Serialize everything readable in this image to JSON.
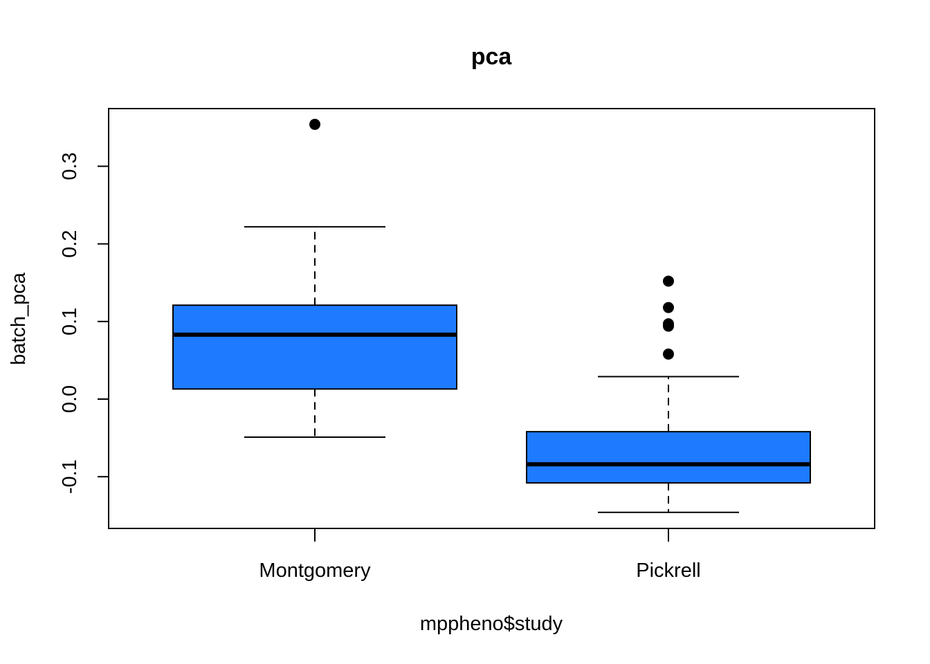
{
  "chart_data": {
    "type": "boxplot",
    "title": "pca",
    "xlabel": "mppheno$study",
    "ylabel": "batch_pca",
    "ylim": [
      -0.165,
      0.375
    ],
    "yticks": [
      -0.1,
      0.0,
      0.1,
      0.2,
      0.3
    ],
    "ytick_labels": [
      "-0.1",
      "0.0",
      "0.1",
      "0.2",
      "0.3"
    ],
    "categories": [
      "Montgomery",
      "Pickrell"
    ],
    "box_color": "#1E7BFF",
    "line_color": "#000000",
    "grid": false,
    "boxes": [
      {
        "name": "Montgomery",
        "whisker_low": -0.049,
        "q1": 0.013,
        "median": 0.083,
        "q3": 0.121,
        "whisker_high": 0.222,
        "outliers": [
          0.354
        ]
      },
      {
        "name": "Pickrell",
        "whisker_low": -0.146,
        "q1": -0.108,
        "median": -0.084,
        "q3": -0.042,
        "whisker_high": 0.029,
        "outliers": [
          0.152,
          0.118,
          0.097,
          0.094,
          0.058
        ]
      }
    ]
  }
}
